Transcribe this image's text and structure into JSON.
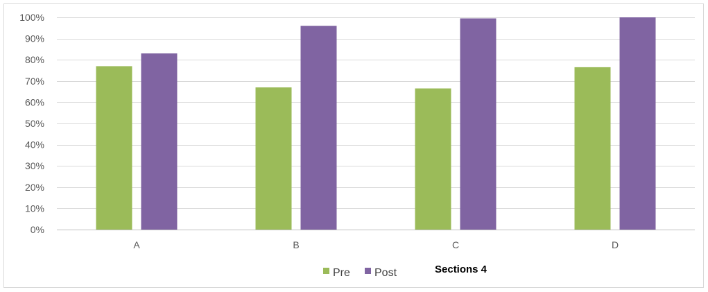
{
  "chart_data": {
    "type": "bar",
    "categories": [
      "A",
      "B",
      "C",
      "D"
    ],
    "series": [
      {
        "name": "Pre",
        "values": [
          77,
          67,
          66.5,
          76.5
        ],
        "color": "#9bbb59"
      },
      {
        "name": "Post",
        "values": [
          83,
          96,
          99.5,
          100
        ],
        "color": "#8064a2"
      }
    ],
    "ylim": [
      0,
      100
    ],
    "yticks": [
      0,
      10,
      20,
      30,
      40,
      50,
      60,
      70,
      80,
      90,
      100
    ],
    "ytick_labels": [
      "0%",
      "10%",
      "20%",
      "30%",
      "40%",
      "50%",
      "60%",
      "70%",
      "80%",
      "90%",
      "100%"
    ],
    "grid": true,
    "legend_position": "bottom",
    "annotation": "Sections 4",
    "xlabel": "",
    "ylabel": ""
  }
}
